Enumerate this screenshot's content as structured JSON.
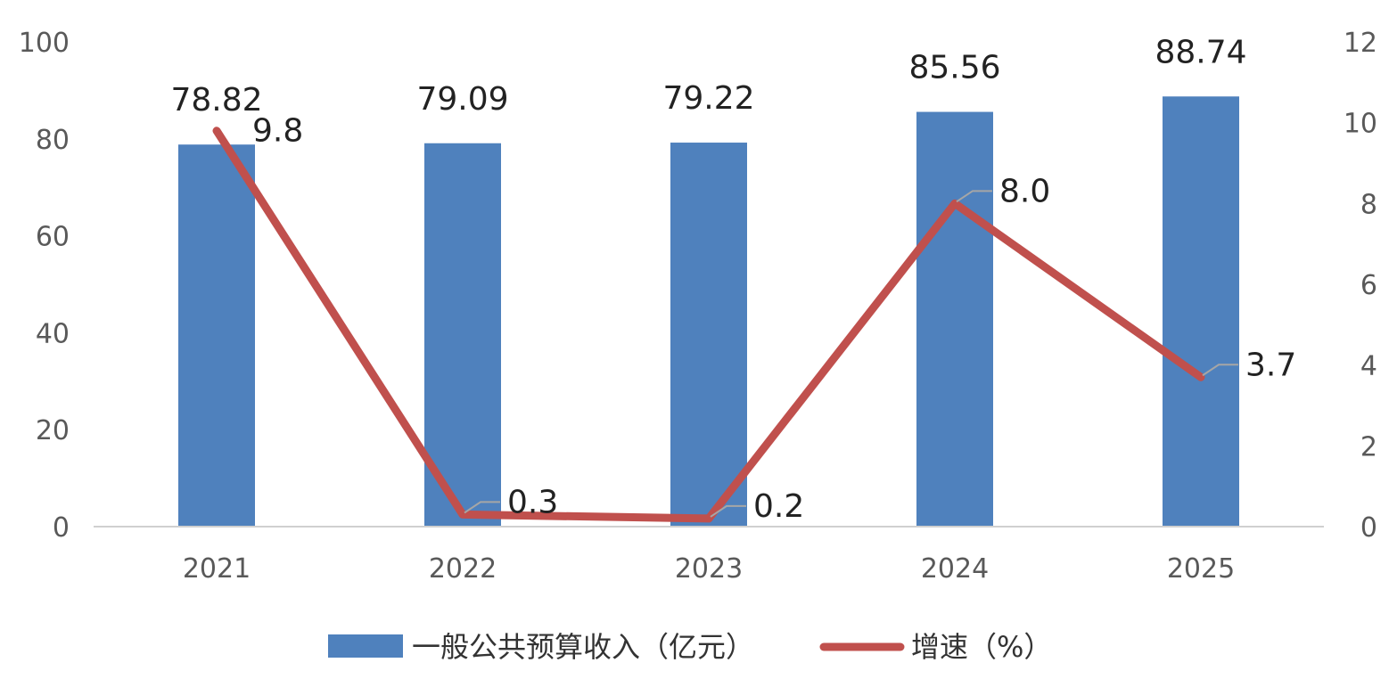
{
  "chart_data": {
    "type": "bar",
    "categories": [
      "2021",
      "2022",
      "2023",
      "2024",
      "2025"
    ],
    "series": [
      {
        "name": "一般公共预算收入（亿元）",
        "kind": "bar",
        "axis": "left",
        "color": "#4F81BD",
        "values": [
          78.82,
          79.09,
          79.22,
          85.56,
          88.74
        ],
        "labels": [
          "78.82",
          "79.09",
          "79.22",
          "85.56",
          "88.74"
        ]
      },
      {
        "name": "增速（%）",
        "kind": "line",
        "axis": "right",
        "color": "#C0504D",
        "values": [
          9.8,
          0.3,
          0.2,
          8.0,
          3.7
        ],
        "labels": [
          "9.8",
          "0.3",
          "0.2",
          "8.0",
          "3.7"
        ]
      }
    ],
    "y_left": {
      "min": 0,
      "max": 100,
      "ticks": [
        "0",
        "20",
        "40",
        "60",
        "80",
        "100"
      ]
    },
    "y_right": {
      "min": 0,
      "max": 12,
      "ticks": [
        "0",
        "2",
        "4",
        "6",
        "8",
        "10",
        "12"
      ]
    },
    "grid": false,
    "legend": "bottom",
    "title": "",
    "xlabel": "",
    "ylabel": ""
  }
}
